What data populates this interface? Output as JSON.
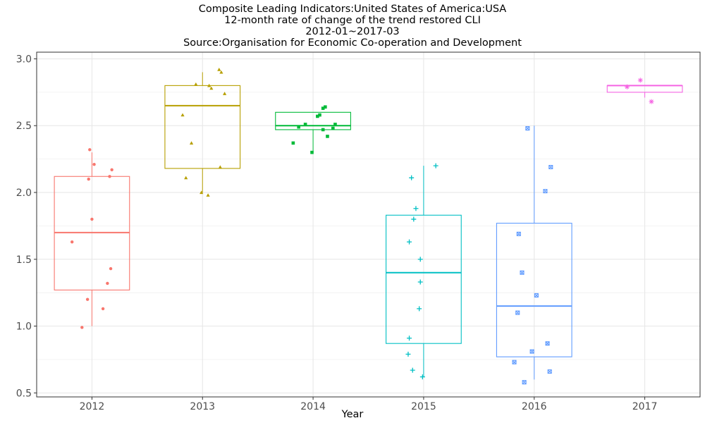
{
  "chart_data": {
    "type": "box",
    "title_lines": [
      "Composite Leading Indicators:United States of America:USA",
      "12-month rate of change of the trend restored CLI",
      "2012-01~2017-03",
      "Source:Organisation for Economic Co-operation and Development"
    ],
    "xlabel": "Year",
    "ylabel": "",
    "ylim": [
      0.47,
      3.05
    ],
    "yticks": [
      "0.5",
      "1.0",
      "1.5",
      "2.0",
      "2.5",
      "3.0"
    ],
    "categories": [
      "2012",
      "2013",
      "2014",
      "2015",
      "2016",
      "2017"
    ],
    "grid": true,
    "legend": "none",
    "boxes": [
      {
        "category": "2012",
        "color": "#F8766D",
        "marker": "circle",
        "whisker_low": 1.0,
        "q1": 1.27,
        "median": 1.7,
        "q3": 2.12,
        "whisker_high": 2.3,
        "points": [
          [
            -0.09,
            0.99
          ],
          [
            -0.04,
            1.2
          ],
          [
            0.1,
            1.13
          ],
          [
            0.14,
            1.32
          ],
          [
            0.17,
            1.43
          ],
          [
            -0.18,
            1.63
          ],
          [
            0.0,
            1.8
          ],
          [
            -0.03,
            2.1
          ],
          [
            0.16,
            2.12
          ],
          [
            0.18,
            2.17
          ],
          [
            0.02,
            2.21
          ],
          [
            -0.02,
            2.32
          ]
        ]
      },
      {
        "category": "2013",
        "color": "#B79F00",
        "marker": "triangle",
        "whisker_low": 2.0,
        "q1": 2.18,
        "median": 2.65,
        "q3": 2.8,
        "whisker_high": 2.9,
        "points": [
          [
            0.05,
            1.98
          ],
          [
            -0.01,
            2.0
          ],
          [
            -0.15,
            2.11
          ],
          [
            0.16,
            2.19
          ],
          [
            -0.1,
            2.37
          ],
          [
            -0.18,
            2.58
          ],
          [
            0.2,
            2.74
          ],
          [
            0.08,
            2.78
          ],
          [
            -0.06,
            2.81
          ],
          [
            0.06,
            2.8
          ],
          [
            0.17,
            2.9
          ],
          [
            0.15,
            2.92
          ]
        ]
      },
      {
        "category": "2014",
        "color": "#00BA38",
        "marker": "square",
        "whisker_low": 2.3,
        "q1": 2.47,
        "median": 2.5,
        "q3": 2.6,
        "whisker_high": 2.6,
        "points": [
          [
            -0.18,
            2.37
          ],
          [
            -0.01,
            2.3
          ],
          [
            0.13,
            2.42
          ],
          [
            0.09,
            2.47
          ],
          [
            0.18,
            2.48
          ],
          [
            -0.13,
            2.49
          ],
          [
            0.2,
            2.51
          ],
          [
            -0.07,
            2.51
          ],
          [
            0.04,
            2.57
          ],
          [
            0.06,
            2.58
          ],
          [
            0.09,
            2.63
          ],
          [
            0.11,
            2.64
          ]
        ]
      },
      {
        "category": "2015",
        "color": "#00BFC4",
        "marker": "plus",
        "whisker_low": 0.62,
        "q1": 0.87,
        "median": 1.4,
        "q3": 1.83,
        "whisker_high": 2.2,
        "points": [
          [
            -0.01,
            0.62
          ],
          [
            -0.1,
            0.67
          ],
          [
            -0.14,
            0.79
          ],
          [
            -0.13,
            0.91
          ],
          [
            -0.04,
            1.13
          ],
          [
            -0.03,
            1.33
          ],
          [
            -0.03,
            1.5
          ],
          [
            -0.13,
            1.63
          ],
          [
            -0.09,
            1.8
          ],
          [
            -0.07,
            1.88
          ],
          [
            -0.11,
            2.11
          ],
          [
            0.11,
            2.2
          ]
        ]
      },
      {
        "category": "2016",
        "color": "#619CFF",
        "marker": "boxx",
        "whisker_low": 0.6,
        "q1": 0.77,
        "median": 1.15,
        "q3": 1.77,
        "whisker_high": 2.5,
        "points": [
          [
            -0.09,
            0.58
          ],
          [
            -0.18,
            0.73
          ],
          [
            0.14,
            0.66
          ],
          [
            -0.02,
            0.81
          ],
          [
            0.12,
            0.87
          ],
          [
            -0.15,
            1.1
          ],
          [
            0.02,
            1.23
          ],
          [
            -0.11,
            1.4
          ],
          [
            -0.14,
            1.69
          ],
          [
            0.1,
            2.01
          ],
          [
            0.15,
            2.19
          ],
          [
            -0.06,
            2.48
          ]
        ]
      },
      {
        "category": "2017",
        "color": "#F564E3",
        "marker": "asterisk",
        "whisker_low": 2.71,
        "q1": 2.75,
        "median": 2.8,
        "q3": 2.8,
        "whisker_high": 2.8,
        "points": [
          [
            -0.16,
            2.79
          ],
          [
            -0.04,
            2.84
          ],
          [
            0.06,
            2.68
          ]
        ]
      }
    ]
  }
}
